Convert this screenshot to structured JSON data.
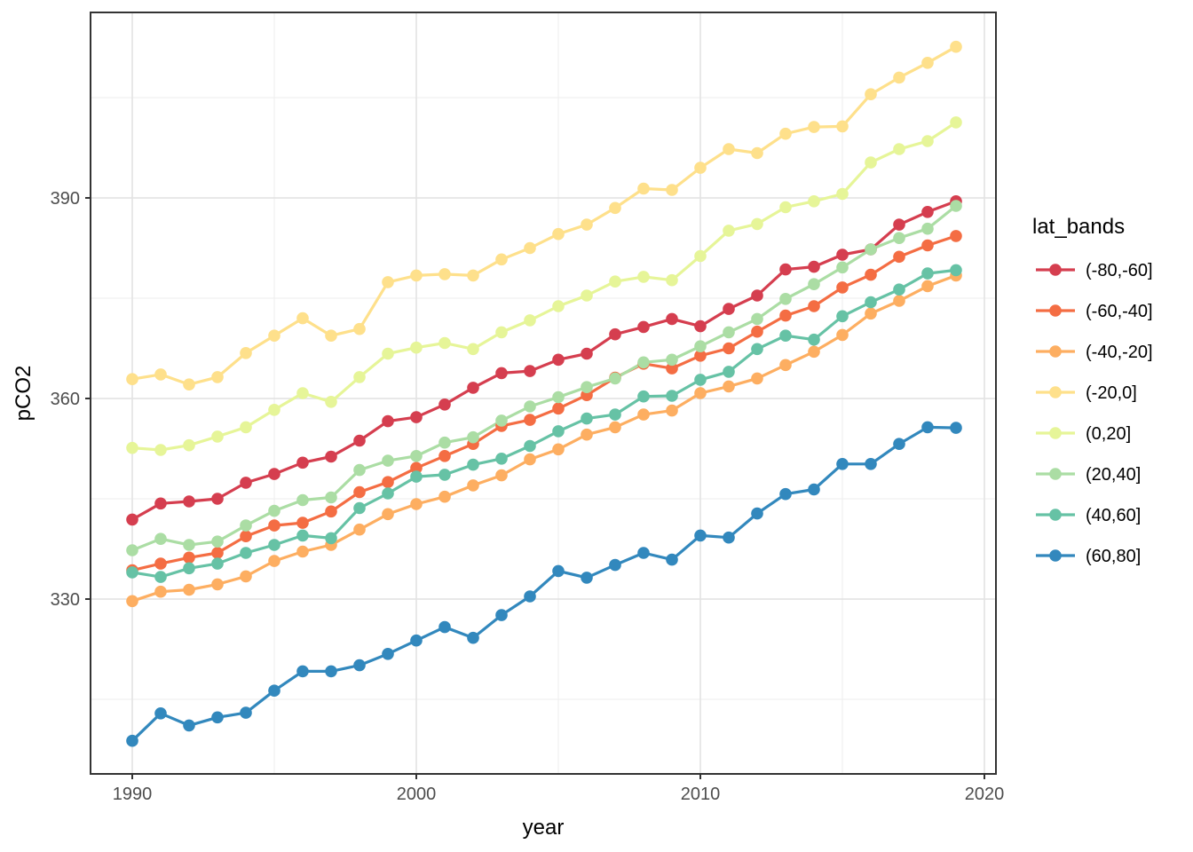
{
  "figure": {
    "type_note": "ggplot2-style multi-series line+point chart on white panel with gray gridlines"
  },
  "chart_data": {
    "type": "line",
    "title": "",
    "xlabel": "year",
    "ylabel": "pCO2",
    "legend_title": "lat_bands",
    "legend_position": "right",
    "grid": true,
    "x": [
      1990,
      1991,
      1992,
      1993,
      1994,
      1995,
      1996,
      1997,
      1998,
      1999,
      2000,
      2001,
      2002,
      2003,
      2004,
      2005,
      2006,
      2007,
      2008,
      2009,
      2010,
      2011,
      2012,
      2013,
      2014,
      2015,
      2016,
      2017,
      2018,
      2019
    ],
    "x_ticks": [
      1990,
      2000,
      2010,
      2020
    ],
    "x_minor_ticks": [
      1995,
      2005,
      2015
    ],
    "y_ticks": [
      330,
      360,
      390
    ],
    "y_minor_ticks": [
      315,
      345,
      375,
      405
    ],
    "xlim": [
      1988.5,
      2020.4
    ],
    "ylim": [
      303.8,
      417.7
    ],
    "series": [
      {
        "label": "(-80,-60]",
        "color": "#d53e4f",
        "values": [
          341.9,
          344.3,
          344.6,
          345.0,
          347.4,
          348.7,
          350.4,
          351.3,
          353.7,
          356.6,
          357.2,
          359.1,
          361.6,
          363.8,
          364.1,
          365.8,
          366.7,
          369.6,
          370.7,
          371.9,
          370.8,
          373.4,
          375.4,
          379.3,
          379.7,
          381.5,
          382.3,
          386.0,
          387.9,
          389.5
        ]
      },
      {
        "label": "(-60,-40]",
        "color": "#f46d43",
        "values": [
          334.3,
          335.3,
          336.2,
          336.9,
          339.4,
          341.0,
          341.4,
          343.1,
          346.0,
          347.5,
          349.6,
          351.4,
          353.2,
          355.9,
          356.8,
          358.5,
          360.5,
          363.1,
          365.2,
          364.5,
          366.4,
          367.5,
          370.0,
          372.4,
          373.8,
          376.6,
          378.5,
          381.2,
          382.9,
          384.3
        ]
      },
      {
        "label": "(-40,-20]",
        "color": "#fdae61",
        "values": [
          329.7,
          331.1,
          331.4,
          332.2,
          333.4,
          335.7,
          337.1,
          338.1,
          340.4,
          342.7,
          344.2,
          345.3,
          347.0,
          348.5,
          350.9,
          352.4,
          354.6,
          355.7,
          357.6,
          358.2,
          360.8,
          361.8,
          363.0,
          365.0,
          367.0,
          369.5,
          372.7,
          374.6,
          376.8,
          378.4
        ]
      },
      {
        "label": "(-20,0]",
        "color": "#fee08b",
        "values": [
          362.9,
          363.6,
          362.1,
          363.2,
          366.8,
          369.4,
          372.0,
          369.4,
          370.4,
          377.4,
          378.4,
          378.6,
          378.4,
          380.8,
          382.5,
          384.6,
          386.0,
          388.5,
          391.4,
          391.2,
          394.5,
          397.3,
          396.7,
          399.6,
          400.6,
          400.7,
          405.5,
          408.0,
          410.2,
          412.6
        ]
      },
      {
        "label": "(0,20]",
        "color": "#e6f598",
        "values": [
          352.6,
          352.3,
          353.0,
          354.3,
          355.7,
          358.3,
          360.8,
          359.5,
          363.2,
          366.7,
          367.6,
          368.3,
          367.4,
          369.9,
          371.7,
          373.8,
          375.4,
          377.5,
          378.2,
          377.7,
          381.3,
          385.1,
          386.1,
          388.6,
          389.5,
          390.6,
          395.3,
          397.3,
          398.5,
          401.3
        ]
      },
      {
        "label": "(20,40]",
        "color": "#abdda4",
        "values": [
          337.3,
          339.0,
          338.1,
          338.6,
          341.0,
          343.2,
          344.8,
          345.2,
          349.3,
          350.7,
          351.4,
          353.4,
          354.2,
          356.7,
          358.8,
          360.2,
          361.7,
          363.0,
          365.4,
          365.8,
          367.8,
          369.9,
          371.9,
          374.9,
          377.1,
          379.6,
          382.3,
          384.0,
          385.4,
          388.8
        ]
      },
      {
        "label": "(40,60]",
        "color": "#66c2a5",
        "values": [
          334.0,
          333.3,
          334.6,
          335.3,
          336.9,
          338.1,
          339.5,
          339.1,
          343.6,
          345.8,
          348.3,
          348.6,
          350.1,
          351.0,
          352.9,
          355.1,
          357.0,
          357.6,
          360.3,
          360.4,
          362.8,
          364.0,
          367.4,
          369.4,
          368.8,
          372.3,
          374.4,
          376.3,
          378.7,
          379.2
        ]
      },
      {
        "label": "(60,80]",
        "color": "#3288bd",
        "values": [
          308.8,
          312.9,
          311.1,
          312.3,
          313.0,
          316.3,
          319.2,
          319.2,
          320.1,
          321.8,
          323.8,
          325.8,
          324.2,
          327.6,
          330.4,
          334.2,
          333.2,
          335.1,
          336.9,
          335.9,
          339.5,
          339.2,
          342.8,
          345.7,
          346.4,
          350.2,
          350.2,
          353.2,
          355.7,
          355.6
        ]
      }
    ]
  },
  "colors": {
    "background": "#ffffff",
    "panel_background": "#ffffff",
    "grid_major": "#e4e4e4",
    "grid_minor": "#f0f0f0",
    "panel_border": "#333333",
    "tick_mark": "#333333",
    "tick_label": "#4d4d4d",
    "axis_title": "#000000",
    "legend_text": "#000000"
  }
}
